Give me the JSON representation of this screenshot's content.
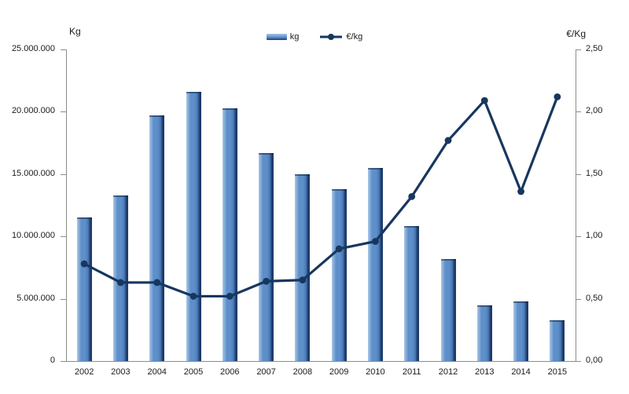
{
  "chart_data": {
    "type": "bar+line",
    "title": "",
    "categories": [
      "2002",
      "2003",
      "2004",
      "2005",
      "2006",
      "2007",
      "2008",
      "2009",
      "2010",
      "2011",
      "2012",
      "2013",
      "2014",
      "2015"
    ],
    "series": [
      {
        "name": "kg",
        "type": "bar",
        "axis": "left",
        "values": [
          11500000,
          13300000,
          19700000,
          21600000,
          20300000,
          16700000,
          15000000,
          13800000,
          15500000,
          10800000,
          8200000,
          4500000,
          4800000,
          3300000
        ]
      },
      {
        "name": "€/kg",
        "type": "line",
        "axis": "right",
        "values": [
          0.78,
          0.63,
          0.63,
          0.52,
          0.52,
          0.64,
          0.65,
          0.9,
          0.96,
          1.32,
          1.77,
          2.09,
          1.36,
          2.12
        ]
      }
    ],
    "left_axis": {
      "title": "Kg",
      "min": 0,
      "max": 25000000,
      "step": 5000000,
      "tick_labels": [
        "0",
        "5.000.000",
        "10.000.000",
        "15.000.000",
        "20.000.000",
        "25.000.000"
      ]
    },
    "right_axis": {
      "title": "€/Kg",
      "min": 0,
      "max": 2.5,
      "step": 0.5,
      "tick_labels": [
        "0,00",
        "0,50",
        "1,00",
        "1,50",
        "2,00",
        "2,50"
      ]
    },
    "legend": [
      "kg",
      "€/kg"
    ],
    "legend_position": "top-center",
    "grid": false
  },
  "colors": {
    "bar_highlight": "#A9C7E7",
    "bar_fill": "#5E8FC9",
    "bar_fill_deep": "#4A7AB8",
    "bar_edge_dark": "#1E3C6B",
    "line": "#17375E",
    "axis": "#8C8C8C",
    "text": "#1A1A1A",
    "background": "#FFFFFF"
  }
}
